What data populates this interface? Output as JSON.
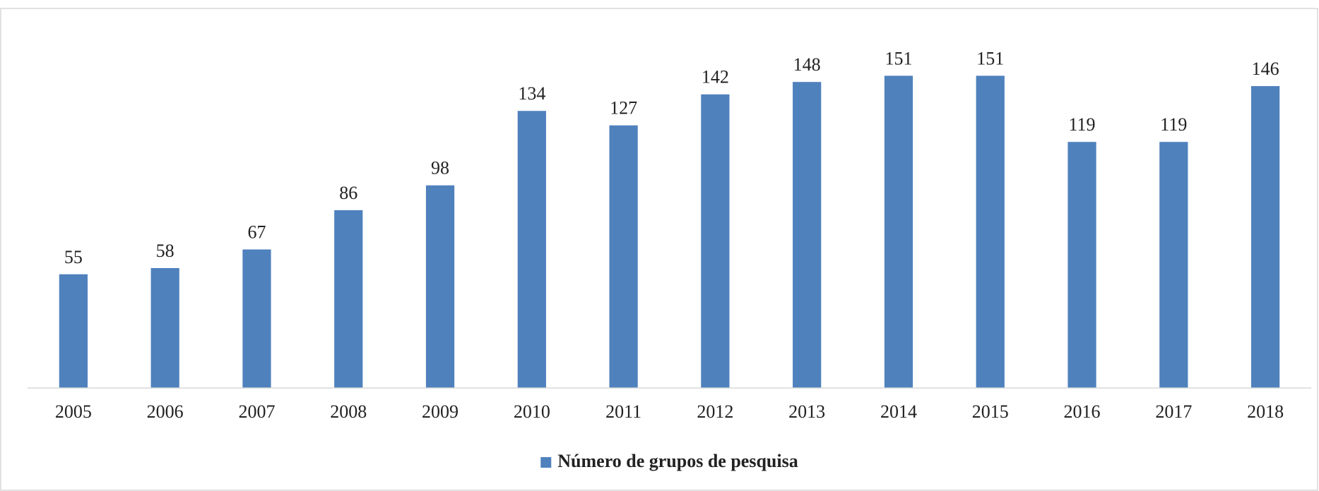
{
  "chart_data": {
    "type": "bar",
    "categories": [
      "2005",
      "2006",
      "2007",
      "2008",
      "2009",
      "2010",
      "2011",
      "2012",
      "2013",
      "2014",
      "2015",
      "2016",
      "2017",
      "2018"
    ],
    "series": [
      {
        "name": "Número de grupos de pesquisa",
        "color": "#4f81bd",
        "values": [
          55,
          58,
          67,
          86,
          98,
          134,
          127,
          142,
          148,
          151,
          151,
          119,
          119,
          146
        ]
      }
    ],
    "ylim": [
      0,
      160
    ],
    "legend": "bottom"
  }
}
